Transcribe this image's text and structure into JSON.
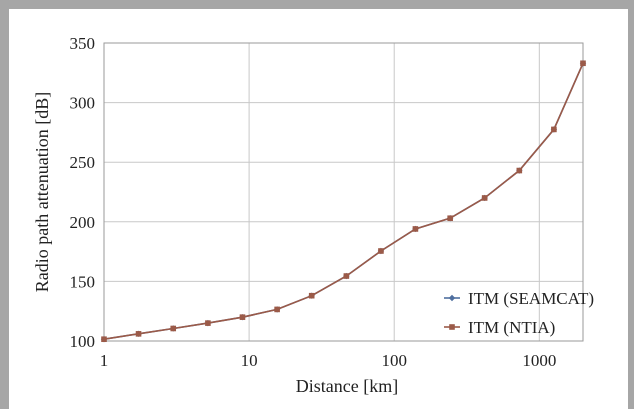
{
  "chart_data": {
    "type": "line",
    "xlabel": "Distance [km]",
    "ylabel": "Radio path attenuation [dB]",
    "x_scale": "log",
    "xlim": [
      1,
      2000
    ],
    "ylim": [
      100,
      350
    ],
    "x_ticks": [
      1,
      10,
      100,
      1000
    ],
    "x_tick_labels": [
      "1",
      "10",
      "100",
      "1000"
    ],
    "y_ticks": [
      100,
      150,
      200,
      250,
      300,
      350
    ],
    "y_tick_labels": [
      "100",
      "150",
      "200",
      "250",
      "300",
      "350"
    ],
    "grid": true,
    "legend_position": "bottom-right",
    "series": [
      {
        "name": "ITM (SEAMCAT)",
        "color": "#4f6f9f",
        "marker": "diamond",
        "x": [
          1,
          1.73,
          3,
          5.2,
          9,
          15.6,
          27,
          46.8,
          81,
          140,
          243,
          420,
          728,
          1260,
          2000
        ],
        "y": [
          101.5,
          106,
          110.5,
          115,
          120,
          126.5,
          138,
          154.5,
          175.5,
          194,
          203,
          220,
          243,
          277.5,
          333
        ]
      },
      {
        "name": "ITM (NTIA)",
        "color": "#9b5a48",
        "marker": "square",
        "x": [
          1,
          1.73,
          3,
          5.2,
          9,
          15.6,
          27,
          46.8,
          81,
          140,
          243,
          420,
          728,
          1260,
          2000
        ],
        "y": [
          101.5,
          106,
          110.5,
          115,
          120,
          126.5,
          138,
          154.5,
          175.5,
          194,
          203,
          220,
          243,
          277.5,
          333
        ]
      }
    ]
  }
}
